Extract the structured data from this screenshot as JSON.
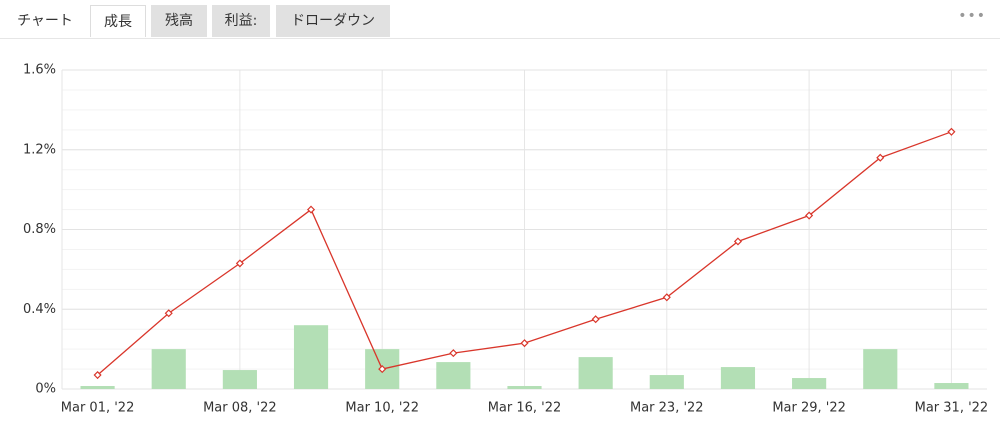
{
  "tabs": {
    "labels": [
      "チャート",
      "成長",
      "残高",
      "利益:",
      "ドローダウン"
    ],
    "active": 1,
    "first_plain": true
  },
  "chart_data": {
    "type": "bar-line",
    "categories": [
      "Mar 01, '22",
      null,
      "Mar 08, '22",
      null,
      "Mar 10, '22",
      null,
      "Mar 16, '22",
      null,
      "Mar 23, '22",
      null,
      "Mar 29, '22",
      null,
      "Mar 31, '22"
    ],
    "series": [
      {
        "type": "bar",
        "color": "#b3dfb5",
        "values": [
          0.015,
          0.2,
          0.095,
          0.32,
          0.2,
          0.135,
          0.015,
          0.16,
          0.07,
          0.11,
          0.055,
          0.2,
          0.03
        ]
      },
      {
        "type": "line",
        "color": "#d9362b",
        "values": [
          0.07,
          0.38,
          0.63,
          0.9,
          0.1,
          0.18,
          0.23,
          0.35,
          0.46,
          0.74,
          0.87,
          1.16,
          1.29
        ]
      }
    ],
    "ylim": [
      0,
      1.6
    ],
    "yticks": [
      {
        "value": 0,
        "label": "0%"
      },
      {
        "value": 0.4,
        "label": "0.4%"
      },
      {
        "value": 0.8,
        "label": "0.8%"
      },
      {
        "value": 1.2,
        "label": "1.2%"
      },
      {
        "value": 1.6,
        "label": "1.6%"
      }
    ],
    "grid": true
  }
}
